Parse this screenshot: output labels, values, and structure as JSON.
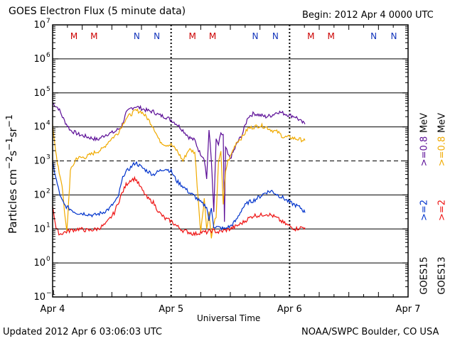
{
  "header": {
    "title": "GOES Electron Flux (5 minute data)",
    "begin": "Begin: 2012 Apr 4 0000 UTC"
  },
  "footer": {
    "updated": "Updated 2012 Apr  6 03:06:03 UTC",
    "credit": "NOAA/SWPC Boulder, CO USA"
  },
  "legend": {
    "goes15": "GOES15",
    "goes13": "GOES13",
    "g15_2mev": ">=2",
    "g13_2mev": ">=2",
    "g15_08mev": ">=0.8",
    "g13_08mev": ">=0.8",
    "mev": "MeV"
  },
  "colors": {
    "goes15_08": "#5a0c96",
    "goes13_08": "#f0aa00",
    "goes15_2": "#0033cc",
    "goes13_2": "#ee1111",
    "marker_m": "#cc0000",
    "marker_n": "#1133bb"
  },
  "chart_data": {
    "type": "line",
    "title": "GOES Electron Flux (5 minute data)",
    "xlabel": "Universal Time",
    "ylabel": "Particles cm-2s-1sr-1",
    "ylabel_text": {
      "base": "Particles cm",
      "e1": "−2",
      "s": "s",
      "e2": "−1",
      "sr": "sr",
      "e3": "−1"
    },
    "yscale": "log",
    "ylim": [
      0.1,
      10000000
    ],
    "y_ticks": [
      {
        "exp": -1,
        "label": "10",
        "sup": "−1"
      },
      {
        "exp": 0,
        "label": "10",
        "sup": "0"
      },
      {
        "exp": 1,
        "label": "10",
        "sup": "1"
      },
      {
        "exp": 2,
        "label": "10",
        "sup": "2"
      },
      {
        "exp": 3,
        "label": "10",
        "sup": "3"
      },
      {
        "exp": 4,
        "label": "10",
        "sup": "4"
      },
      {
        "exp": 5,
        "label": "10",
        "sup": "5"
      },
      {
        "exp": 6,
        "label": "10",
        "sup": "6"
      },
      {
        "exp": 7,
        "label": "10",
        "sup": "7"
      }
    ],
    "xlim_days": [
      0,
      3
    ],
    "x_ticks": [
      {
        "t": 0,
        "label": "Apr 4"
      },
      {
        "t": 1,
        "label": "Apr 5"
      },
      {
        "t": 2,
        "label": "Apr 6"
      },
      {
        "t": 3,
        "label": "Apr 7"
      }
    ],
    "dashed_reference_level": 1000,
    "markers": [
      {
        "t": 0.18,
        "label": "M",
        "kind": "M"
      },
      {
        "t": 0.35,
        "label": "M",
        "kind": "M"
      },
      {
        "t": 0.71,
        "label": "N",
        "kind": "N"
      },
      {
        "t": 0.88,
        "label": "N",
        "kind": "N"
      },
      {
        "t": 1.18,
        "label": "M",
        "kind": "M"
      },
      {
        "t": 1.35,
        "label": "M",
        "kind": "M"
      },
      {
        "t": 1.71,
        "label": "N",
        "kind": "N"
      },
      {
        "t": 1.88,
        "label": "N",
        "kind": "N"
      },
      {
        "t": 2.18,
        "label": "M",
        "kind": "M"
      },
      {
        "t": 2.35,
        "label": "M",
        "kind": "M"
      },
      {
        "t": 2.71,
        "label": "N",
        "kind": "N"
      },
      {
        "t": 2.88,
        "label": "N",
        "kind": "N"
      }
    ],
    "series": [
      {
        "name": "GOES15 >=0.8 MeV",
        "color": "#5a0c96",
        "x": [
          0,
          0.05,
          0.1,
          0.15,
          0.22,
          0.3,
          0.38,
          0.45,
          0.52,
          0.58,
          0.62,
          0.66,
          0.7,
          0.75,
          0.8,
          0.85,
          0.9,
          0.95,
          1.0,
          1.05,
          1.1,
          1.15,
          1.2,
          1.24,
          1.28,
          1.3,
          1.32,
          1.34,
          1.35,
          1.36,
          1.38,
          1.4,
          1.42,
          1.44,
          1.45,
          1.46,
          1.48,
          1.5,
          1.53,
          1.56,
          1.6,
          1.65,
          1.7,
          1.75,
          1.8,
          1.85,
          1.9,
          1.95,
          2.0,
          2.05,
          2.1,
          2.13
        ],
        "y": [
          50000,
          35000,
          15000,
          8000,
          6000,
          5000,
          4200,
          6000,
          7000,
          10000,
          25000,
          35000,
          40000,
          35000,
          30000,
          28000,
          22000,
          20000,
          16000,
          12000,
          8000,
          5000,
          4000,
          1800,
          1200,
          300,
          8000,
          1000,
          200,
          30,
          4000,
          3000,
          6000,
          6000,
          15,
          2500,
          1500,
          1200,
          2000,
          3500,
          6000,
          20000,
          25000,
          22000,
          20000,
          22000,
          28000,
          25000,
          22000,
          20000,
          14000,
          12000
        ]
      },
      {
        "name": "GOES13 >=0.8 MeV",
        "color": "#f0aa00",
        "x": [
          0,
          0.04,
          0.08,
          0.1,
          0.12,
          0.15,
          0.2,
          0.28,
          0.36,
          0.42,
          0.48,
          0.55,
          0.62,
          0.7,
          0.75,
          0.8,
          0.85,
          0.9,
          0.95,
          1.0,
          1.05,
          1.1,
          1.15,
          1.2,
          1.22,
          1.25,
          1.28,
          1.3,
          1.32,
          1.34,
          1.36,
          1.38,
          1.4,
          1.42,
          1.44,
          1.46,
          1.48,
          1.5,
          1.52,
          1.55,
          1.6,
          1.65,
          1.7,
          1.75,
          1.8,
          1.85,
          1.9,
          1.95,
          2.0,
          2.05,
          2.1,
          2.13
        ],
        "y": [
          12000,
          800,
          200,
          30,
          8,
          500,
          1200,
          1300,
          1800,
          2200,
          4000,
          6500,
          18000,
          30000,
          28000,
          18000,
          10000,
          4000,
          3000,
          3000,
          2000,
          1000,
          2200,
          1800,
          200,
          8,
          80,
          10,
          30,
          5,
          15,
          20,
          1000,
          2000,
          50,
          500,
          1000,
          1300,
          2000,
          3500,
          5000,
          9000,
          10000,
          11000,
          10000,
          8000,
          7000,
          5000,
          5000,
          4500,
          4200,
          4000
        ]
      },
      {
        "name": "GOES15 >=2 MeV",
        "color": "#0033cc",
        "x": [
          0,
          0.04,
          0.07,
          0.1,
          0.14,
          0.2,
          0.28,
          0.35,
          0.42,
          0.48,
          0.55,
          0.6,
          0.65,
          0.7,
          0.75,
          0.8,
          0.85,
          0.9,
          0.95,
          1.0,
          1.05,
          1.1,
          1.15,
          1.2,
          1.25,
          1.3,
          1.32,
          1.34,
          1.36,
          1.4,
          1.45,
          1.5,
          1.55,
          1.6,
          1.65,
          1.7,
          1.75,
          1.8,
          1.85,
          1.9,
          1.95,
          2.0,
          2.05,
          2.1,
          2.13
        ],
        "y": [
          900,
          200,
          80,
          50,
          40,
          30,
          28,
          25,
          30,
          40,
          80,
          400,
          600,
          900,
          650,
          500,
          400,
          500,
          600,
          500,
          250,
          180,
          120,
          90,
          60,
          45,
          18,
          40,
          12,
          11,
          10,
          12,
          18,
          40,
          60,
          70,
          90,
          120,
          130,
          100,
          80,
          60,
          50,
          40,
          30
        ]
      },
      {
        "name": "GOES13 >=2 MeV",
        "color": "#ee1111",
        "x": [
          0,
          0.03,
          0.06,
          0.1,
          0.15,
          0.22,
          0.3,
          0.38,
          0.45,
          0.52,
          0.58,
          0.62,
          0.66,
          0.7,
          0.75,
          0.8,
          0.85,
          0.9,
          0.95,
          1.0,
          1.05,
          1.1,
          1.15,
          1.2,
          1.25,
          1.3,
          1.35,
          1.4,
          1.45,
          1.5,
          1.55,
          1.6,
          1.65,
          1.7,
          1.75,
          1.8,
          1.85,
          1.9,
          1.95,
          2.0,
          2.05,
          2.1,
          2.13
        ],
        "y": [
          50,
          10,
          7,
          8,
          9,
          10,
          9,
          10,
          14,
          30,
          100,
          200,
          280,
          300,
          150,
          80,
          60,
          30,
          20,
          17,
          12,
          9,
          8,
          7,
          8,
          8,
          9,
          8,
          9,
          10,
          12,
          15,
          20,
          25,
          25,
          28,
          25,
          20,
          15,
          12,
          10,
          11,
          11
        ]
      }
    ]
  }
}
